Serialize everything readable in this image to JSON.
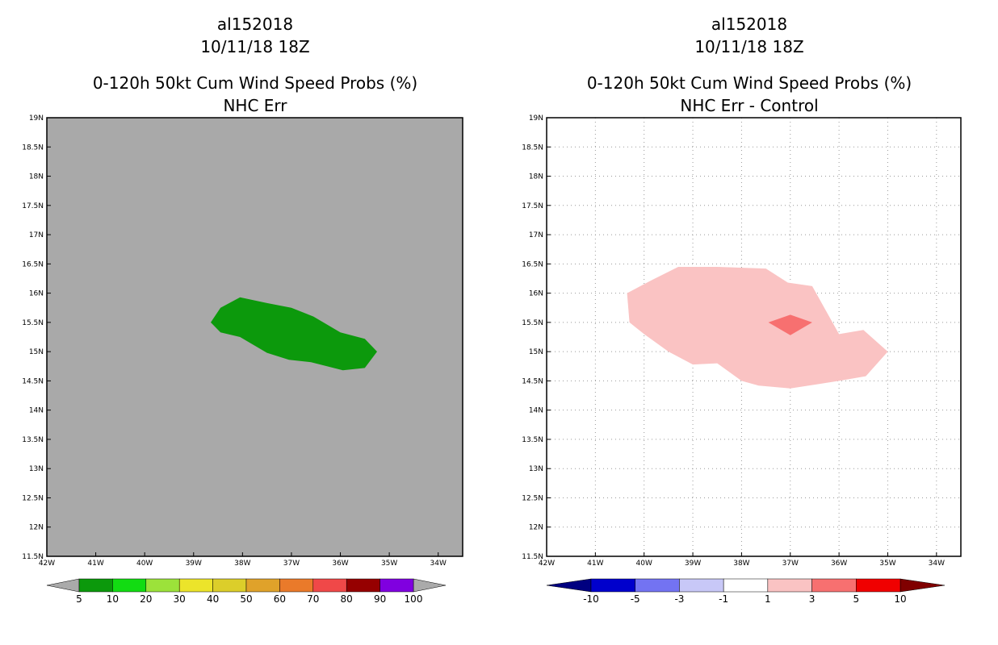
{
  "chart_data": [
    {
      "type": "map-contour",
      "title_lines": [
        "al152018",
        "10/11/18 18Z",
        "0-120h 50kt Cum Wind Speed Probs (%)",
        "NHC Err"
      ],
      "xlabel": "",
      "ylabel": "",
      "xlim": [
        -42,
        -33.5
      ],
      "ylim": [
        11.5,
        19
      ],
      "grid": false,
      "background_color": "#a9a9a9",
      "x_tick_values": [
        -42,
        -41,
        -40,
        -39,
        -38,
        -37,
        -36,
        -35,
        -34
      ],
      "x_tick_labels": [
        "42W",
        "41W",
        "40W",
        "39W",
        "38W",
        "37W",
        "36W",
        "35W",
        "34W"
      ],
      "y_tick_values": [
        11.5,
        12,
        12.5,
        13,
        13.5,
        14,
        14.5,
        15,
        15.5,
        16,
        16.5,
        17,
        17.5,
        18,
        18.5,
        19
      ],
      "y_tick_labels": [
        "11.5N",
        "12N",
        "12.5N",
        "13N",
        "13.5N",
        "14N",
        "14.5N",
        "15N",
        "15.5N",
        "16N",
        "16.5N",
        "17N",
        "17.5N",
        "18N",
        "18.5N",
        "19N"
      ],
      "contours": [
        {
          "level": "5-10",
          "color": "#0c990c",
          "points": [
            [
              -38.65,
              15.5
            ],
            [
              -38.45,
              15.75
            ],
            [
              -38.05,
              15.93
            ],
            [
              -37.5,
              15.83
            ],
            [
              -37,
              15.75
            ],
            [
              -36.55,
              15.6
            ],
            [
              -36,
              15.33
            ],
            [
              -35.5,
              15.22
            ],
            [
              -35.25,
              15.0
            ],
            [
              -35.5,
              14.72
            ],
            [
              -35.95,
              14.68
            ],
            [
              -36.6,
              14.82
            ],
            [
              -37.05,
              14.86
            ],
            [
              -37.5,
              14.98
            ],
            [
              -38.05,
              15.25
            ],
            [
              -38.45,
              15.33
            ]
          ]
        }
      ],
      "colorbar": {
        "labels": [
          "5",
          "10",
          "20",
          "30",
          "40",
          "50",
          "60",
          "70",
          "80",
          "90",
          "100"
        ],
        "colors": [
          "#0c990c",
          "#12dc12",
          "#9ce23a",
          "#ece42a",
          "#dcce2a",
          "#e0a22a",
          "#ea7a2a",
          "#f04848",
          "#960000",
          "#8000e0"
        ],
        "end_low_color": "#aaaaaa",
        "end_high_color": "#aaaaaa"
      }
    },
    {
      "type": "map-contour",
      "title_lines": [
        "al152018",
        "10/11/18 18Z",
        "0-120h 50kt Cum Wind Speed Probs (%)",
        "NHC Err - Control"
      ],
      "xlabel": "",
      "ylabel": "",
      "xlim": [
        -42,
        -33.5
      ],
      "ylim": [
        11.5,
        19
      ],
      "grid": true,
      "background_color": "#ffffff",
      "x_tick_values": [
        -42,
        -41,
        -40,
        -39,
        -38,
        -37,
        -36,
        -35,
        -34
      ],
      "x_tick_labels": [
        "42W",
        "41W",
        "40W",
        "39W",
        "38W",
        "37W",
        "36W",
        "35W",
        "34W"
      ],
      "y_tick_values": [
        11.5,
        12,
        12.5,
        13,
        13.5,
        14,
        14.5,
        15,
        15.5,
        16,
        16.5,
        17,
        17.5,
        18,
        18.5,
        19
      ],
      "y_tick_labels": [
        "11.5N",
        "12N",
        "12.5N",
        "13N",
        "13.5N",
        "14N",
        "14.5N",
        "15N",
        "15.5N",
        "16N",
        "16.5N",
        "17N",
        "17.5N",
        "18N",
        "18.5N",
        "19N"
      ],
      "contours": [
        {
          "level": "1-3",
          "color": "#fac3c3",
          "points": [
            [
              -40.35,
              16.0
            ],
            [
              -39.85,
              16.22
            ],
            [
              -39.3,
              16.45
            ],
            [
              -38.5,
              16.45
            ],
            [
              -37.5,
              16.42
            ],
            [
              -37.05,
              16.18
            ],
            [
              -36.55,
              16.12
            ],
            [
              -36.0,
              15.3
            ],
            [
              -35.5,
              15.37
            ],
            [
              -35.0,
              15.0
            ],
            [
              -35.45,
              14.58
            ],
            [
              -36.0,
              14.5
            ],
            [
              -37.0,
              14.37
            ],
            [
              -37.65,
              14.42
            ],
            [
              -38.0,
              14.5
            ],
            [
              -38.5,
              14.8
            ],
            [
              -39.0,
              14.78
            ],
            [
              -39.5,
              15.0
            ],
            [
              -40.0,
              15.3
            ],
            [
              -40.3,
              15.5
            ]
          ]
        },
        {
          "level": "3-5",
          "color": "#f77070",
          "points": [
            [
              -37.45,
              15.5
            ],
            [
              -37.0,
              15.63
            ],
            [
              -36.55,
              15.5
            ],
            [
              -37.0,
              15.28
            ]
          ]
        }
      ],
      "colorbar": {
        "labels": [
          "-10",
          "-5",
          "-3",
          "-1",
          "1",
          "3",
          "5",
          "10"
        ],
        "colors": [
          "#0000cc",
          "#7373f2",
          "#c8c8f7",
          "#ffffff",
          "#fac3c3",
          "#f77070",
          "#f00000"
        ],
        "end_low_color": "#000080",
        "end_high_color": "#800000"
      }
    }
  ]
}
